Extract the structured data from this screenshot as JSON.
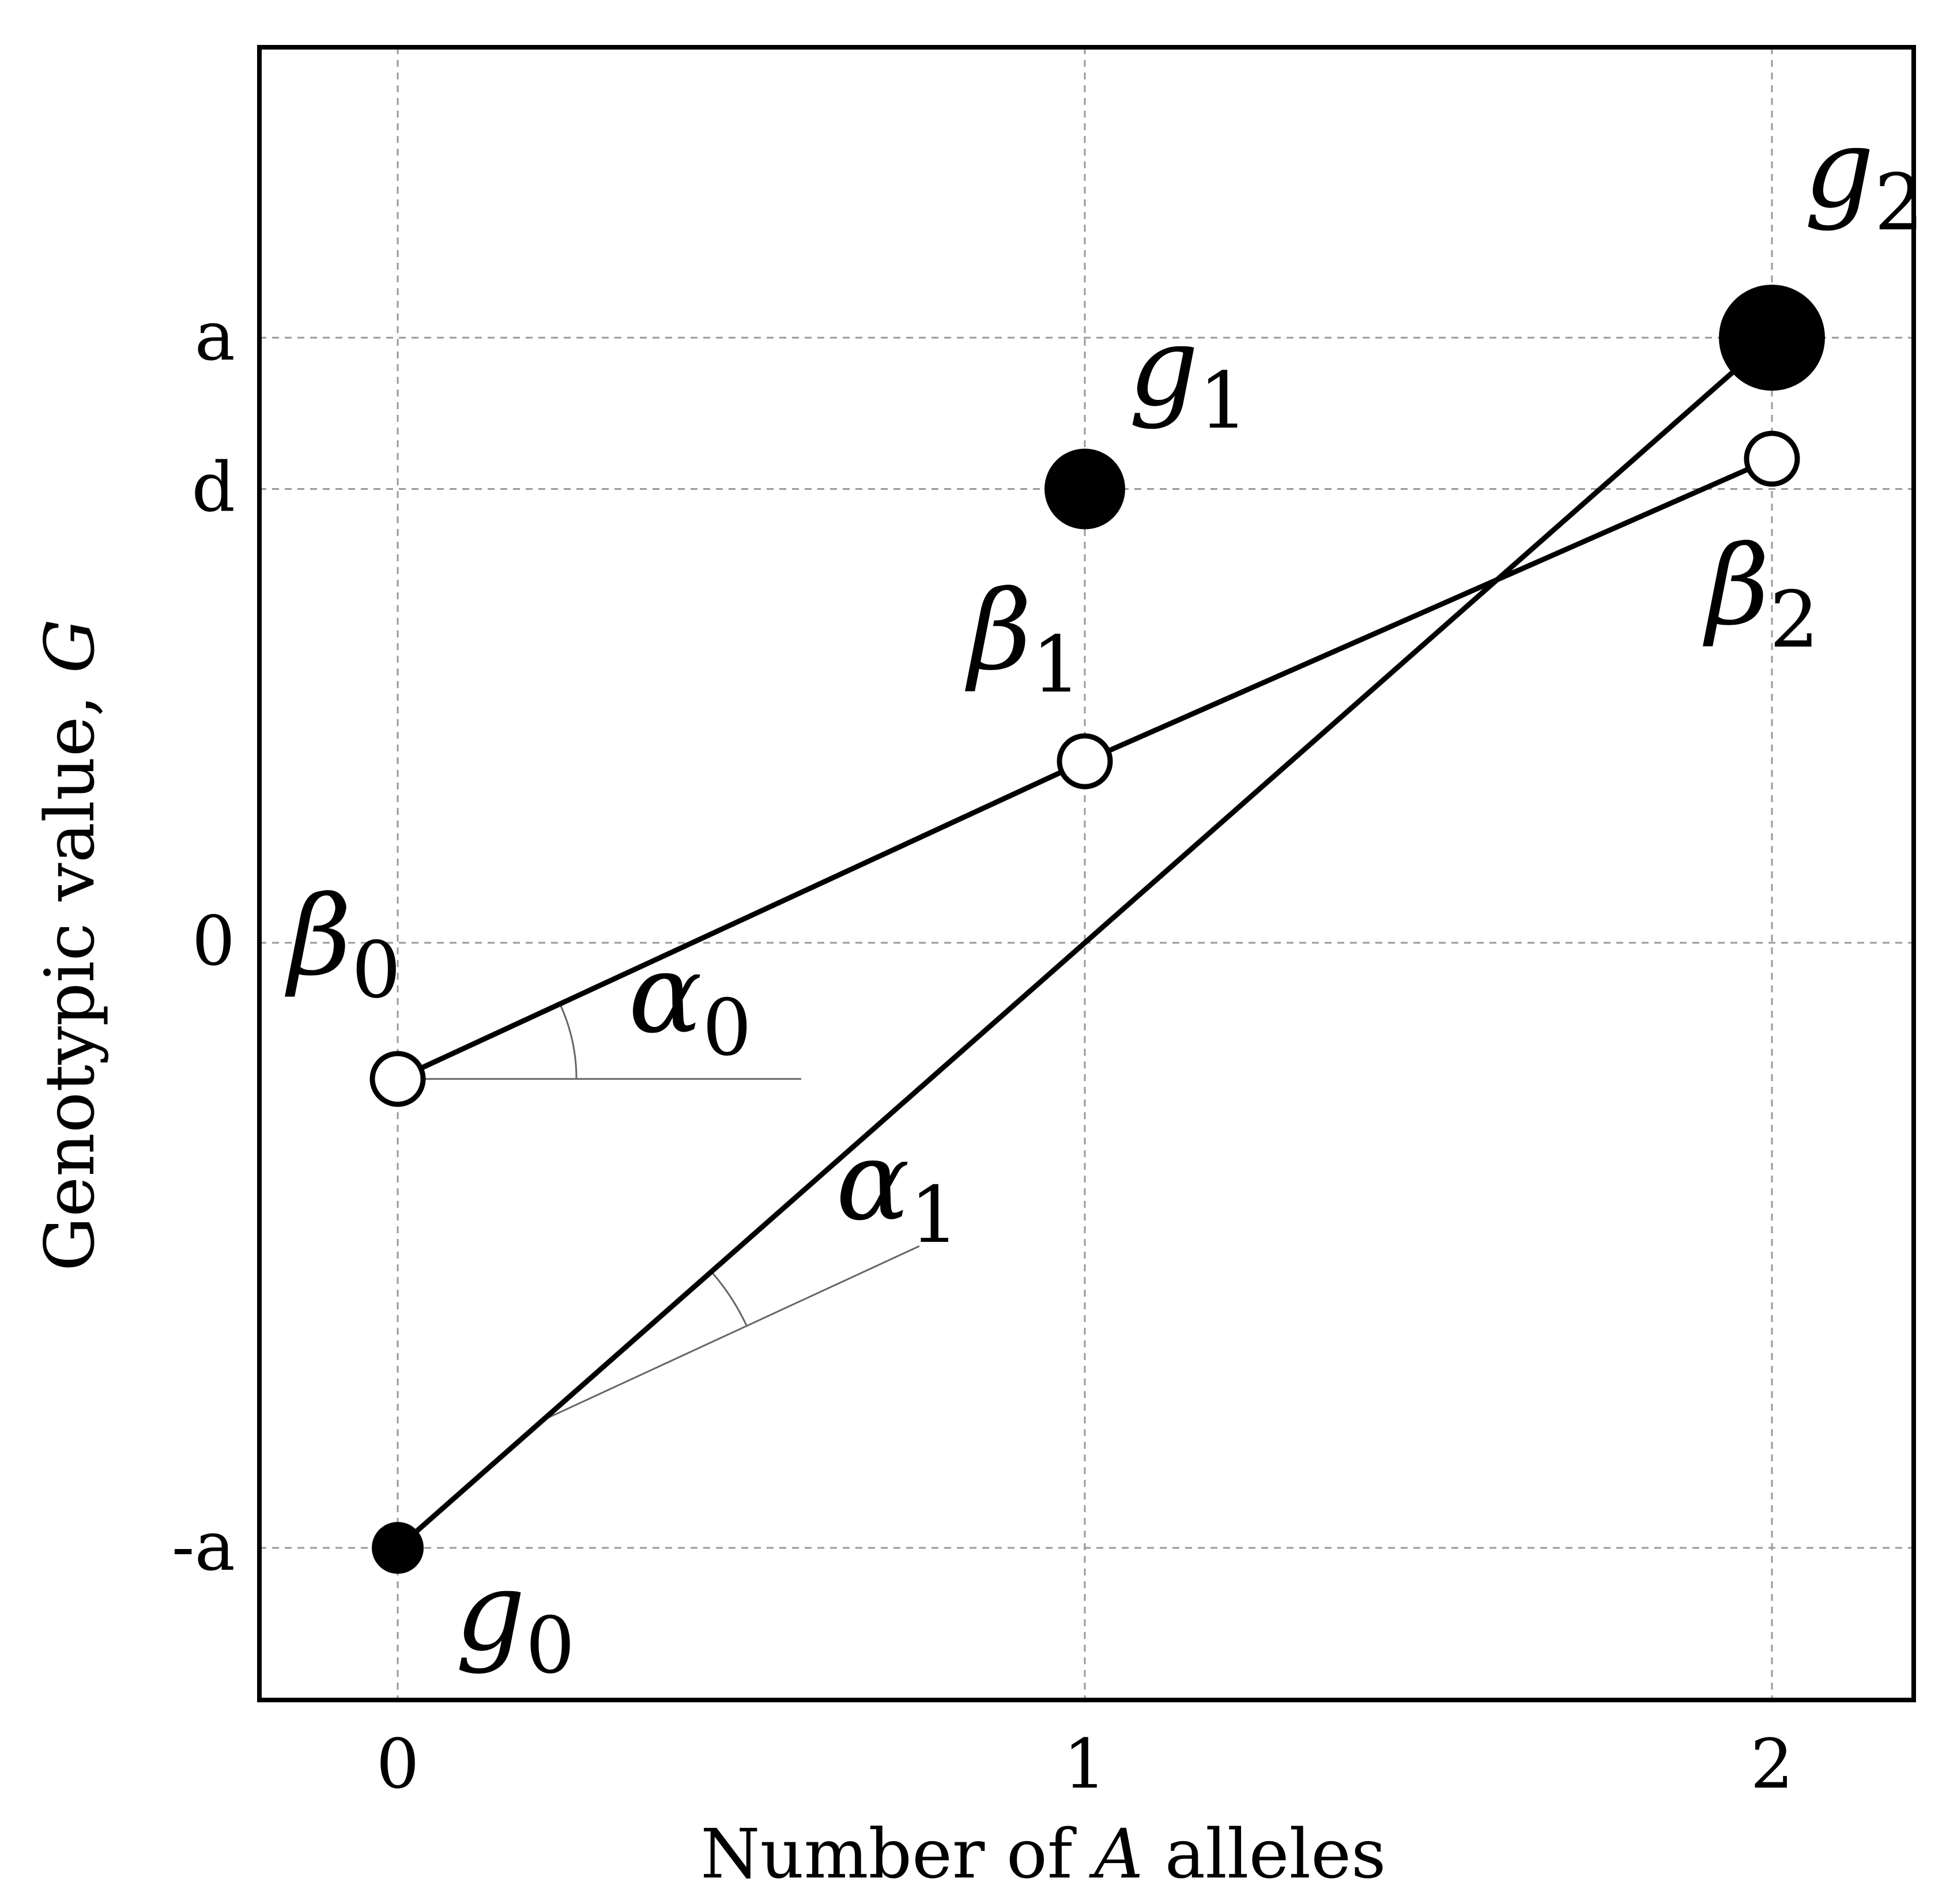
{
  "chart_data": {
    "type": "scatter",
    "xlabel": "Number of A alleles",
    "xlabel_parts": [
      "Number of ",
      "A",
      " alleles"
    ],
    "ylabel": "Genotypic value, G",
    "ylabel_parts": [
      "Genotypic value, ",
      "G"
    ],
    "x_ticks": [
      {
        "value": 0,
        "label": "0"
      },
      {
        "value": 1,
        "label": "1"
      },
      {
        "value": 2,
        "label": "2"
      }
    ],
    "y_ticks": [
      {
        "value": -1.0,
        "label": "-a"
      },
      {
        "value": 0,
        "label": "0"
      },
      {
        "value": 0.75,
        "label": "d"
      },
      {
        "value": 1.0,
        "label": "a"
      }
    ],
    "xlim": [
      -0.2,
      2.2
    ],
    "ylim": [
      -1.25,
      1.45
    ],
    "grid": true,
    "genotypic_values": [
      {
        "name": "g",
        "sub": "0",
        "x": 0,
        "y": -1.0
      },
      {
        "name": "g",
        "sub": "1",
        "x": 1,
        "y": 0.75
      },
      {
        "name": "g",
        "sub": "2",
        "x": 2,
        "y": 1.0
      }
    ],
    "breeding_values": [
      {
        "name": "β",
        "sub": "0",
        "x": 0,
        "y": -0.225
      },
      {
        "name": "β",
        "sub": "1",
        "x": 1,
        "y": 0.3
      },
      {
        "name": "β",
        "sub": "2",
        "x": 2,
        "y": 0.8
      }
    ],
    "angles": [
      {
        "name": "α",
        "sub": "0"
      },
      {
        "name": "α",
        "sub": "1"
      }
    ]
  }
}
